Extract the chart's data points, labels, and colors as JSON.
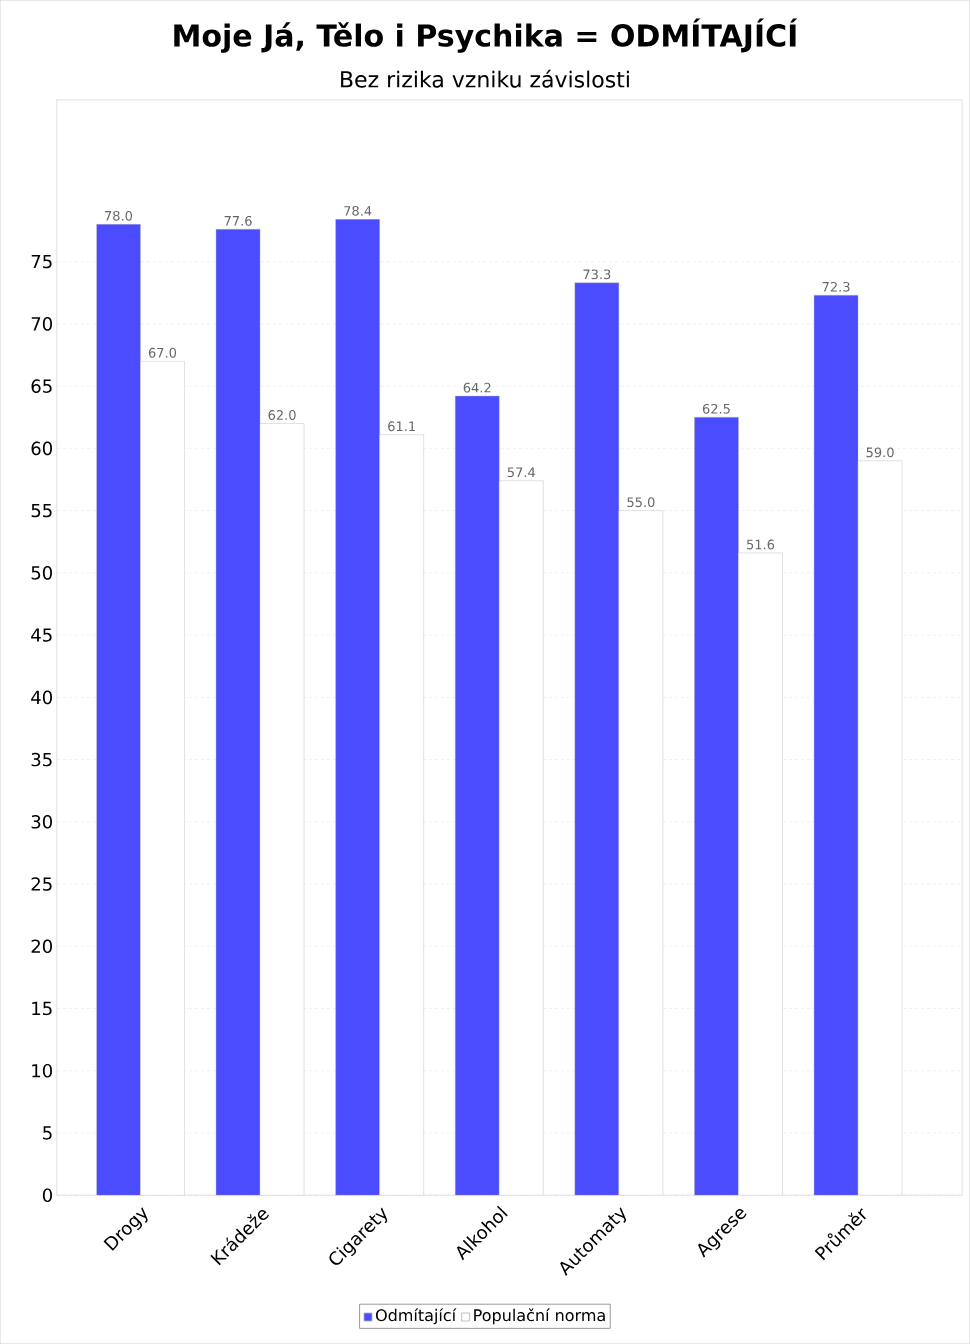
{
  "chart_data": {
    "type": "bar",
    "title": "Moje Já, Tělo i Psychika = ODMÍTAJÍCÍ",
    "subtitle": "Bez rizika vzniku závislosti",
    "categories": [
      "Drogy",
      "Krádeže",
      "Cigarety",
      "Alkohol",
      "Automaty",
      "Agrese",
      "Průměr"
    ],
    "series": [
      {
        "name": "Odmítající",
        "color": "#4b4bff",
        "values": [
          78.0,
          77.6,
          78.4,
          64.2,
          73.3,
          62.5,
          72.3
        ],
        "value_labels": [
          "78.0",
          "77.6",
          "78.4",
          "64.2",
          "73.3",
          "62.5",
          "72.3"
        ]
      },
      {
        "name": "Populační norma",
        "color": "#ffffff",
        "values": [
          67.0,
          62.0,
          61.1,
          57.4,
          55.0,
          51.6,
          59.0
        ],
        "value_labels": [
          "67.0",
          "62.0",
          "61.1",
          "57.4",
          "55.0",
          "51.6",
          "59.0"
        ]
      }
    ],
    "ylim": [
      0,
      88
    ],
    "yticks": [
      0,
      5,
      10,
      15,
      20,
      25,
      30,
      35,
      40,
      45,
      50,
      55,
      60,
      65,
      70,
      75
    ],
    "grid": "y",
    "legend": "bottom"
  }
}
